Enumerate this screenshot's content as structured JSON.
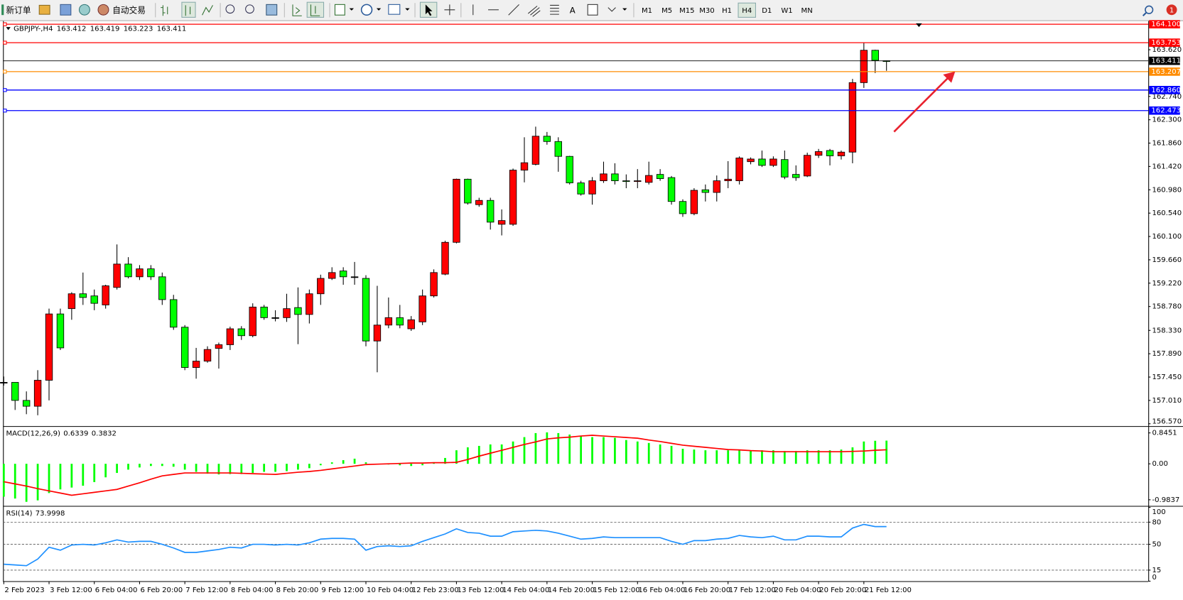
{
  "toolbar": {
    "new_order": "新订单",
    "auto_trading": "自动交易",
    "text_tool": "A",
    "timeframes": [
      "M1",
      "M5",
      "M15",
      "M30",
      "H1",
      "H4",
      "D1",
      "W1",
      "MN"
    ],
    "active_timeframe": "H4",
    "notifications": 1
  },
  "chart_data": [
    {
      "type": "candlestick",
      "title": "GBPJPY-,H4",
      "up_color": "#ff0000",
      "down_color": "#00ff00",
      "categories": [
        "2 Feb 2023",
        null,
        null,
        null,
        "3 Feb 12:00",
        null,
        null,
        null,
        "6 Feb 04:00",
        null,
        null,
        null,
        "6 Feb 20:00",
        null,
        null,
        null,
        "7 Feb 12:00",
        null,
        null,
        null,
        "8 Feb 04:00",
        null,
        null,
        null,
        "8 Feb 20:00",
        null,
        null,
        null,
        "9 Feb 12:00",
        null,
        null,
        null,
        "10 Feb 04:00",
        null,
        null,
        null,
        "12 Feb 23:00",
        null,
        null,
        null,
        "13 Feb 12:00",
        null,
        null,
        null,
        "14 Feb 04:00",
        null,
        null,
        null,
        "14 Feb 20:00",
        null,
        null,
        null,
        "15 Feb 12:00",
        null,
        null,
        null,
        "16 Feb 04:00",
        null,
        null,
        null,
        "16 Feb 20:00",
        null,
        null,
        null,
        "17 Feb 12:00",
        null,
        null,
        null,
        "20 Feb 04:00",
        null,
        null,
        null,
        "20 Feb 20:00",
        null,
        null,
        null,
        "21 Feb 12:00",
        null,
        null
      ],
      "open": [
        157.35,
        157.35,
        157.01,
        156.9,
        157.39,
        158.64,
        158.74,
        159.02,
        158.98,
        158.81,
        159.14,
        159.58,
        159.34,
        159.49,
        159.34,
        158.91,
        158.39,
        157.63,
        157.75,
        157.99,
        158.06,
        158.36,
        158.23,
        158.77,
        158.57,
        158.57,
        158.76,
        158.63,
        159.02,
        159.31,
        159.45,
        159.34,
        159.31,
        158.13,
        158.43,
        158.57,
        158.36,
        158.49,
        158.98,
        159.39,
        159.99,
        161.18,
        160.7,
        160.78,
        160.33,
        160.33,
        161.35,
        161.46,
        161.99,
        161.89,
        161.61,
        161.11,
        160.9,
        161.15,
        161.28,
        161.15,
        161.14,
        161.12,
        161.27,
        161.21,
        160.76,
        160.53,
        160.98,
        160.93,
        161.15,
        161.15,
        161.51,
        161.56,
        161.44,
        161.55,
        161.27,
        161.24,
        161.63,
        161.72,
        161.62,
        161.69,
        163.0,
        163.61,
        163.412
      ],
      "high": [
        157.46,
        157.35,
        157.18,
        157.58,
        158.74,
        158.74,
        159.05,
        159.42,
        159.1,
        159.19,
        159.95,
        159.71,
        159.56,
        159.56,
        159.42,
        159.0,
        158.43,
        158.0,
        158.03,
        158.1,
        158.4,
        158.41,
        158.84,
        158.81,
        158.71,
        159.02,
        159.14,
        159.1,
        159.38,
        159.52,
        159.52,
        159.62,
        159.37,
        159.17,
        158.95,
        158.81,
        158.6,
        159.1,
        159.48,
        160.02,
        161.19,
        161.19,
        160.83,
        160.83,
        160.61,
        161.38,
        161.97,
        162.17,
        162.07,
        161.97,
        161.62,
        161.15,
        161.22,
        161.51,
        161.48,
        161.27,
        161.37,
        161.51,
        161.37,
        161.24,
        160.8,
        161.01,
        161.08,
        161.25,
        161.52,
        161.61,
        161.59,
        161.72,
        161.61,
        161.72,
        161.44,
        161.68,
        161.75,
        161.75,
        161.72,
        163.07,
        163.75,
        163.62,
        163.419
      ],
      "low": [
        157.29,
        156.83,
        156.75,
        156.73,
        157.01,
        157.96,
        158.53,
        158.81,
        158.71,
        158.74,
        159.1,
        159.31,
        159.28,
        159.28,
        158.81,
        158.34,
        157.58,
        157.42,
        157.72,
        157.61,
        157.96,
        158.15,
        158.2,
        158.53,
        158.5,
        158.49,
        158.07,
        158.46,
        158.81,
        159.28,
        159.19,
        159.19,
        158.03,
        157.54,
        158.37,
        158.37,
        158.32,
        158.43,
        158.95,
        159.37,
        159.97,
        160.7,
        160.66,
        160.23,
        160.12,
        160.3,
        161.12,
        161.44,
        161.83,
        161.32,
        161.08,
        160.87,
        160.7,
        161.11,
        161.08,
        161.01,
        161.01,
        161.08,
        161.15,
        160.7,
        160.47,
        160.5,
        160.76,
        160.76,
        161.01,
        161.08,
        161.46,
        161.41,
        161.41,
        161.18,
        161.15,
        161.22,
        161.58,
        161.44,
        161.55,
        161.48,
        162.9,
        163.18,
        163.223
      ],
      "close": [
        157.35,
        157.01,
        156.9,
        157.39,
        158.64,
        158.0,
        159.02,
        158.95,
        158.84,
        159.17,
        159.58,
        159.34,
        159.49,
        159.34,
        158.91,
        158.39,
        157.63,
        157.75,
        157.97,
        158.06,
        158.36,
        158.23,
        158.77,
        158.57,
        158.57,
        158.74,
        158.63,
        159.02,
        159.31,
        159.42,
        159.34,
        159.34,
        158.13,
        158.43,
        158.57,
        158.43,
        158.53,
        158.98,
        159.42,
        159.99,
        161.18,
        160.73,
        160.78,
        160.37,
        160.4,
        161.35,
        161.49,
        161.99,
        161.89,
        161.61,
        161.11,
        160.9,
        161.15,
        161.28,
        161.15,
        161.14,
        161.15,
        161.25,
        161.19,
        160.76,
        160.53,
        160.97,
        160.93,
        161.15,
        161.18,
        161.58,
        161.56,
        161.44,
        161.56,
        161.22,
        161.21,
        161.63,
        161.7,
        161.62,
        161.69,
        163.0,
        163.61,
        163.42,
        163.411
      ],
      "ylim": [
        156.54,
        164.16
      ],
      "yticks": [
        {
          "value": 156.57,
          "label": "156.570"
        },
        {
          "value": 157.01,
          "label": "157.010"
        },
        {
          "value": 157.45,
          "label": "157.450"
        },
        {
          "value": 157.89,
          "label": "157.890"
        },
        {
          "value": 158.33,
          "label": "158.330"
        },
        {
          "value": 158.78,
          "label": "158.780"
        },
        {
          "value": 159.22,
          "label": "159.220"
        },
        {
          "value": 159.66,
          "label": "159.660"
        },
        {
          "value": 160.1,
          "label": "160.100"
        },
        {
          "value": 160.54,
          "label": "160.540"
        },
        {
          "value": 160.98,
          "label": "160.980"
        },
        {
          "value": 161.42,
          "label": "161.420"
        },
        {
          "value": 161.86,
          "label": "161.860"
        },
        {
          "value": 162.3,
          "label": "162.300"
        },
        {
          "value": 162.74,
          "label": "162.740"
        },
        {
          "value": 163.62,
          "label": "163.620"
        }
      ],
      "levels": [
        {
          "value": 164.1,
          "label": "164.100",
          "color": "#ff0000"
        },
        {
          "value": 163.753,
          "label": "163.753",
          "color": "#ff0000"
        },
        {
          "value": 163.207,
          "label": "163.207",
          "color": "#ff8c00"
        },
        {
          "value": 162.86,
          "label": "162.860",
          "color": "#0000ff"
        },
        {
          "value": 162.473,
          "label": "162.473",
          "color": "#0000ff"
        }
      ],
      "price_line_color": "#000000"
    },
    {
      "type": "macd",
      "title": "MACD(12,26,9)",
      "color": "#00ff00",
      "signal_color": "#ff0000",
      "values": [
        -0.9,
        -0.95,
        -1.04,
        -1.0,
        -0.8,
        -0.7,
        -0.65,
        -0.6,
        -0.5,
        -0.37,
        -0.25,
        -0.16,
        -0.1,
        -0.06,
        -0.06,
        -0.08,
        -0.16,
        -0.22,
        -0.27,
        -0.29,
        -0.28,
        -0.28,
        -0.25,
        -0.22,
        -0.22,
        -0.2,
        -0.16,
        -0.12,
        -0.04,
        0.04,
        0.1,
        0.14,
        0.04,
        -0.02,
        -0.02,
        -0.04,
        -0.06,
        -0.04,
        0.02,
        0.16,
        0.37,
        0.45,
        0.49,
        0.53,
        0.53,
        0.61,
        0.73,
        0.84,
        0.86,
        0.84,
        0.8,
        0.76,
        0.73,
        0.73,
        0.71,
        0.65,
        0.61,
        0.57,
        0.53,
        0.49,
        0.41,
        0.39,
        0.37,
        0.37,
        0.37,
        0.37,
        0.37,
        0.37,
        0.37,
        0.35,
        0.35,
        0.37,
        0.37,
        0.37,
        0.39,
        0.45,
        0.61,
        0.63,
        0.6339
      ],
      "signal": [
        -0.49,
        -0.55,
        -0.61,
        -0.68,
        -0.74,
        -0.8,
        -0.86,
        -0.82,
        -0.78,
        -0.74,
        -0.7,
        -0.61,
        -0.52,
        -0.42,
        -0.33,
        -0.29,
        -0.25,
        -0.25,
        -0.25,
        -0.25,
        -0.25,
        -0.26,
        -0.27,
        -0.28,
        -0.29,
        -0.26,
        -0.23,
        -0.21,
        -0.18,
        -0.14,
        -0.1,
        -0.06,
        -0.02,
        -0.01,
        0.0,
        0.01,
        0.02,
        0.02,
        0.03,
        0.03,
        0.04,
        0.12,
        0.21,
        0.29,
        0.37,
        0.45,
        0.53,
        0.6,
        0.68,
        0.71,
        0.73,
        0.76,
        0.78,
        0.76,
        0.74,
        0.72,
        0.7,
        0.65,
        0.61,
        0.56,
        0.51,
        0.48,
        0.45,
        0.42,
        0.39,
        0.38,
        0.36,
        0.35,
        0.33,
        0.33,
        0.33,
        0.33,
        0.33,
        0.33,
        0.33,
        0.34,
        0.35,
        0.37,
        0.3832
      ],
      "ylim": [
        -1.11,
        0.99
      ],
      "yticks": [
        -0.9837,
        {
          "value": 0,
          "label": "0.00"
        },
        0.8451
      ]
    },
    {
      "type": "line",
      "title": "RSI(14)",
      "color": "#1e90ff",
      "values": [
        23,
        22,
        21,
        30,
        46,
        42,
        49,
        50,
        49,
        52,
        56,
        53,
        54,
        54,
        50,
        45,
        39,
        39,
        41,
        43,
        46,
        45,
        50,
        50,
        49,
        50,
        49,
        52,
        57,
        58,
        58,
        57,
        42,
        47,
        48,
        47,
        48,
        54,
        59,
        64,
        71,
        66,
        65,
        61,
        61,
        67,
        68,
        69,
        68,
        65,
        61,
        57,
        58,
        60,
        59,
        59,
        59,
        59,
        59,
        54,
        50,
        55,
        55,
        57,
        58,
        62,
        60,
        59,
        61,
        56,
        56,
        61,
        61,
        60,
        60,
        72,
        77,
        74,
        73.9998
      ],
      "ylim": [
        0,
        100
      ],
      "yticks": [
        0,
        15,
        50,
        80,
        100
      ],
      "levels": [
        15,
        50,
        80
      ]
    }
  ]
}
